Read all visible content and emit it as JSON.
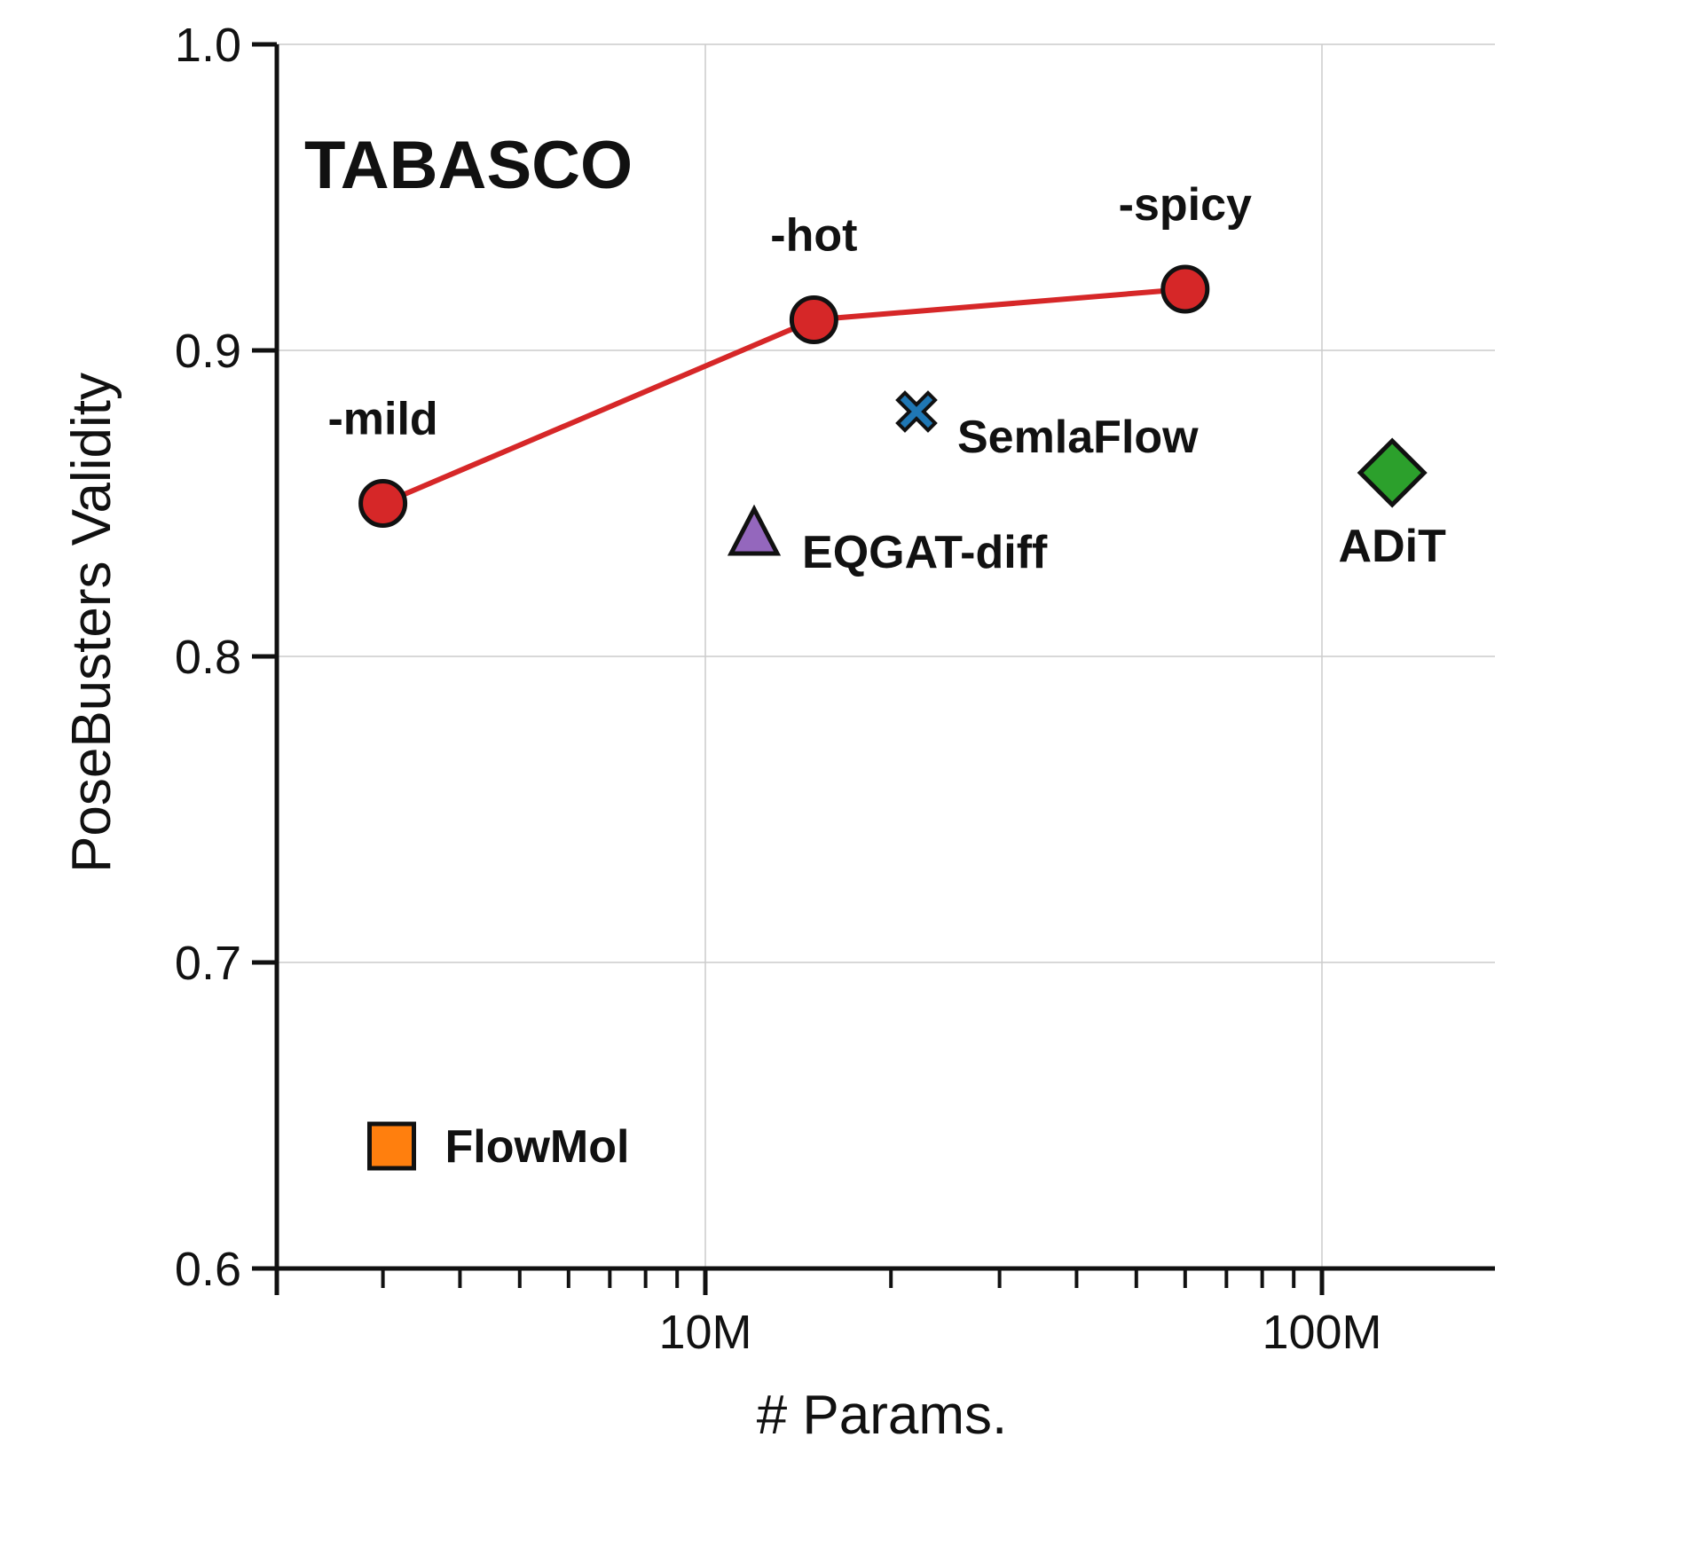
{
  "chart_data": {
    "type": "scatter",
    "xlabel": "# Params.",
    "ylabel": "PoseBusters Validity",
    "x_scale": "log",
    "xlim": [
      2000000,
      200000000
    ],
    "ylim": [
      0.6,
      1.0
    ],
    "grid": true,
    "x_tick_labels": [
      {
        "value": 10000000,
        "label": "10M"
      },
      {
        "value": 100000000,
        "label": "100M"
      }
    ],
    "y_tick_labels": [
      {
        "value": 0.6,
        "label": "0.6"
      },
      {
        "value": 0.7,
        "label": "0.7"
      },
      {
        "value": 0.8,
        "label": "0.8"
      },
      {
        "value": 0.9,
        "label": "0.9"
      },
      {
        "value": 1.0,
        "label": "1.0"
      }
    ],
    "series": [
      {
        "name": "TABASCO",
        "marker": "circle",
        "color": "#d62728",
        "line": true,
        "points": [
          {
            "label": "-mild",
            "x": 3000000,
            "y": 0.85
          },
          {
            "label": "-hot",
            "x": 15000000,
            "y": 0.91
          },
          {
            "label": "-spicy",
            "x": 60000000,
            "y": 0.92
          }
        ]
      },
      {
        "name": "FlowMol",
        "marker": "square",
        "color": "#ff7f0e",
        "points": [
          {
            "label": "FlowMol",
            "x": 3100000,
            "y": 0.64
          }
        ]
      },
      {
        "name": "EQGAT-diff",
        "marker": "triangle",
        "color": "#9467bd",
        "points": [
          {
            "label": "EQGAT-diff",
            "x": 12000000,
            "y": 0.84
          }
        ]
      },
      {
        "name": "SemlaFlow",
        "marker": "x",
        "color": "#1f77b4",
        "points": [
          {
            "label": "SemlaFlow",
            "x": 22000000,
            "y": 0.88
          }
        ]
      },
      {
        "name": "ADiT",
        "marker": "diamond",
        "color": "#2ca02c",
        "points": [
          {
            "label": "ADiT",
            "x": 130000000,
            "y": 0.86
          }
        ]
      }
    ]
  }
}
